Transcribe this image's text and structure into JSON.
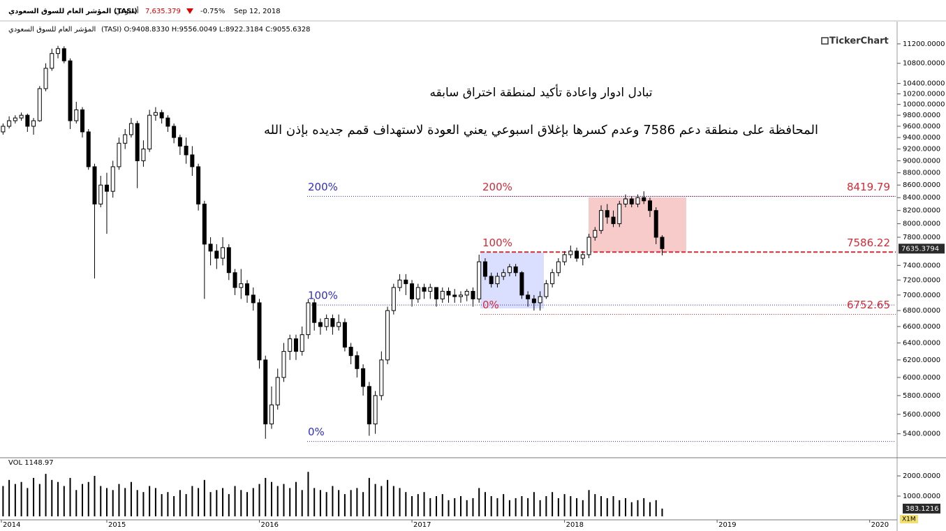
{
  "header": {
    "index_name": "المؤشر العام للسوق السعودي (TASI)",
    "period": "أسبوعي",
    "price": "7,635.379",
    "change": "-0.75%",
    "date": "Sep 12, 2018",
    "ohlc_name": "المؤشر العام للسوق السعودي",
    "ohlc": "(TASI) O:9408.8330 H:9556.0049 L:8922.3184 C:9055.6328",
    "logo": "TickerChart"
  },
  "chart_data": {
    "type": "candlestick",
    "annotations": [
      "تبادل ادوار واعادة تأكيد لمنطقة اختراق سابقه",
      "المحافظة على منطقة دعم 7586 وعدم كسرها بإغلاق اسبوعي يعني العودة لاستهداف قمم جديده بإذن الله"
    ],
    "log_scale": true,
    "up_color": "#ffffff",
    "down_color": "#000000",
    "x": [
      2014.32,
      2014.36,
      2014.4,
      2014.44,
      2014.48,
      2014.52,
      2014.56,
      2014.6,
      2014.64,
      2014.68,
      2014.72,
      2014.76,
      2014.8,
      2014.84,
      2014.88,
      2014.92,
      2014.96,
      2015.0,
      2015.04,
      2015.08,
      2015.12,
      2015.16,
      2015.2,
      2015.24,
      2015.28,
      2015.32,
      2015.36,
      2015.4,
      2015.44,
      2015.48,
      2015.52,
      2015.56,
      2015.6,
      2015.64,
      2015.68,
      2015.72,
      2015.76,
      2015.8,
      2015.84,
      2015.88,
      2015.92,
      2015.96,
      2016.0,
      2016.04,
      2016.08,
      2016.12,
      2016.16,
      2016.2,
      2016.24,
      2016.28,
      2016.32,
      2016.36,
      2016.4,
      2016.44,
      2016.48,
      2016.52,
      2016.56,
      2016.6,
      2016.64,
      2016.68,
      2016.72,
      2016.76,
      2016.8,
      2016.84,
      2016.88,
      2016.92,
      2016.96,
      2017.0,
      2017.04,
      2017.08,
      2017.12,
      2017.16,
      2017.2,
      2017.24,
      2017.28,
      2017.32,
      2017.36,
      2017.4,
      2017.44,
      2017.48,
      2017.52,
      2017.56,
      2017.6,
      2017.64,
      2017.68,
      2017.72,
      2017.76,
      2017.8,
      2017.84,
      2017.88,
      2017.92,
      2017.96,
      2018.0,
      2018.04,
      2018.08,
      2018.12,
      2018.16,
      2018.2,
      2018.24,
      2018.28,
      2018.32,
      2018.36,
      2018.4,
      2018.44,
      2018.48,
      2018.52,
      2018.56,
      2018.6,
      2018.64
    ],
    "open": [
      9500,
      9600,
      9700,
      9750,
      9800,
      9600,
      9700,
      10300,
      10700,
      11000,
      11100,
      10850,
      9700,
      9900,
      9500,
      8900,
      8300,
      8600,
      8500,
      8900,
      9300,
      9450,
      9650,
      9000,
      9200,
      9800,
      9850,
      9750,
      9600,
      9400,
      9250,
      9100,
      8900,
      8300,
      7700,
      7600,
      7500,
      7650,
      7300,
      7100,
      7150,
      7000,
      6900,
      6200,
      5500,
      5700,
      6000,
      6300,
      6450,
      6300,
      6500,
      6900,
      6650,
      6600,
      6700,
      6600,
      6650,
      6350,
      6250,
      6100,
      5900,
      5500,
      5800,
      6200,
      6800,
      7100,
      7200,
      7150,
      6950,
      7100,
      7050,
      7100,
      6950,
      7050,
      7000,
      6980,
      7000,
      7050,
      6950,
      7450,
      7250,
      7150,
      7250,
      7300,
      7380,
      7300,
      7000,
      6950,
      6900,
      6980,
      7150,
      7300,
      7450,
      7550,
      7600,
      7500,
      7550,
      7800,
      7900,
      8200,
      8100,
      8000,
      8300,
      8380,
      8300,
      8400,
      8350,
      8200,
      7800
    ],
    "high": [
      9650,
      9780,
      9800,
      9850,
      9830,
      9750,
      10350,
      10800,
      11100,
      11160,
      11150,
      10900,
      10050,
      9950,
      9550,
      8950,
      8750,
      8800,
      9000,
      9400,
      9550,
      9750,
      9700,
      9350,
      9900,
      9950,
      9900,
      9800,
      9650,
      9450,
      9400,
      9250,
      8950,
      8350,
      7800,
      7700,
      7800,
      7700,
      7350,
      7350,
      7200,
      7100,
      6950,
      6250,
      5900,
      6100,
      6400,
      6500,
      6500,
      6600,
      6950,
      6950,
      6700,
      6750,
      6750,
      6750,
      6700,
      6400,
      6300,
      6150,
      5950,
      5850,
      6300,
      6850,
      7150,
      7280,
      7280,
      7200,
      7150,
      7150,
      7150,
      7100,
      7100,
      7100,
      7080,
      7050,
      7080,
      7100,
      7550,
      7500,
      7300,
      7300,
      7350,
      7420,
      7420,
      7320,
      7050,
      7000,
      7050,
      7200,
      7350,
      7500,
      7600,
      7680,
      7650,
      7600,
      7850,
      7950,
      8280,
      8300,
      8200,
      8350,
      8450,
      8420,
      8450,
      8500,
      8400,
      8250,
      7830
    ],
    "low": [
      9450,
      9560,
      9650,
      9700,
      9500,
      9450,
      9680,
      10250,
      10650,
      10900,
      10800,
      9550,
      9650,
      9400,
      8850,
      7220,
      8250,
      7850,
      8400,
      8850,
      9200,
      9400,
      8550,
      8900,
      9150,
      9700,
      9650,
      9500,
      9300,
      9100,
      8950,
      8750,
      8200,
      6950,
      7400,
      7350,
      7400,
      7200,
      7000,
      6950,
      6900,
      6800,
      6100,
      5350,
      5450,
      5650,
      5950,
      6200,
      6200,
      6250,
      6450,
      6550,
      6500,
      6550,
      6500,
      6550,
      6300,
      6150,
      6000,
      5800,
      5380,
      5400,
      5750,
      6150,
      6750,
      7050,
      7000,
      6850,
      6900,
      6950,
      6950,
      6850,
      6900,
      6900,
      6900,
      6900,
      6920,
      6850,
      6900,
      7200,
      7100,
      7100,
      7200,
      7250,
      7250,
      6950,
      6850,
      6800,
      6800,
      6950,
      7100,
      7250,
      7400,
      7500,
      7450,
      7400,
      7500,
      7750,
      7850,
      8000,
      7950,
      7950,
      8250,
      8250,
      8250,
      8300,
      8100,
      7700,
      7540
    ],
    "close": [
      9600,
      9700,
      9750,
      9800,
      9600,
      9700,
      10300,
      10700,
      11000,
      11100,
      10850,
      9700,
      9900,
      9500,
      8900,
      8300,
      8600,
      8500,
      8900,
      9300,
      9450,
      9650,
      9000,
      9200,
      9800,
      9850,
      9750,
      9600,
      9400,
      9250,
      9100,
      8900,
      8300,
      7700,
      7600,
      7500,
      7650,
      7300,
      7100,
      7150,
      7000,
      6900,
      6200,
      5500,
      5700,
      6000,
      6300,
      6450,
      6300,
      6500,
      6900,
      6650,
      6600,
      6700,
      6600,
      6650,
      6350,
      6250,
      6100,
      5900,
      5500,
      5800,
      6200,
      6800,
      7100,
      7200,
      7150,
      6950,
      7100,
      7050,
      7100,
      6950,
      7050,
      7000,
      6980,
      7000,
      7050,
      6950,
      7450,
      7250,
      7150,
      7250,
      7300,
      7380,
      7300,
      7000,
      6950,
      6900,
      6980,
      7150,
      7300,
      7450,
      7550,
      7600,
      7500,
      7550,
      7800,
      7900,
      8200,
      8100,
      8000,
      8300,
      8380,
      8300,
      8400,
      8350,
      8200,
      7800,
      7635.3794
    ],
    "ylim": [
      5170,
      11390
    ],
    "yticks": [
      {
        "value": 11200,
        "label": "11200.0000"
      },
      {
        "value": 10800,
        "label": "10800.0000"
      },
      {
        "value": 10400,
        "label": "10400.0000"
      },
      {
        "value": 10200,
        "label": "10200.0000"
      },
      {
        "value": 10000,
        "label": "10000.0000"
      },
      {
        "value": 9800,
        "label": "9800.0000"
      },
      {
        "value": 9600,
        "label": "9600.0000"
      },
      {
        "value": 9400,
        "label": "9400.0000"
      },
      {
        "value": 9200,
        "label": "9200.0000"
      },
      {
        "value": 9000,
        "label": "9000.0000"
      },
      {
        "value": 8800,
        "label": "8800.0000"
      },
      {
        "value": 8600,
        "label": "8600.0000"
      },
      {
        "value": 8400,
        "label": "8400.0000"
      },
      {
        "value": 8200,
        "label": "8200.0000"
      },
      {
        "value": 8000,
        "label": "8000.0000"
      },
      {
        "value": 7800,
        "label": "7800.0000"
      },
      {
        "value": 7400,
        "label": "7400.0000"
      },
      {
        "value": 7200,
        "label": "7200.0000"
      },
      {
        "value": 7000,
        "label": "7000.0000"
      },
      {
        "value": 6800,
        "label": "6800.0000"
      },
      {
        "value": 6600,
        "label": "6600.0000"
      },
      {
        "value": 6400,
        "label": "6400.0000"
      },
      {
        "value": 6200,
        "label": "6200.0000"
      },
      {
        "value": 6000,
        "label": "6000.0000"
      },
      {
        "value": 5800,
        "label": "5800.0000"
      },
      {
        "value": 5600,
        "label": "5600.0000"
      },
      {
        "value": 5400,
        "label": "5400.0000"
      }
    ],
    "xlim": [
      2014.3,
      2020.18
    ],
    "xticks": [
      {
        "value": 2014.3,
        "label": "2014"
      },
      2015,
      2016,
      2017,
      2018,
      2019,
      2020
    ],
    "fib_blue": {
      "color": "#2f2fc8",
      "levels": [
        {
          "label": "200%",
          "value": 8419.79
        },
        {
          "label": "100%",
          "value": 6871
        },
        {
          "label": "0%",
          "value": 5323
        }
      ]
    },
    "fib_red": {
      "color": "#d42a35",
      "levels": [
        {
          "label": "200%",
          "value": 8419.79
        },
        {
          "label": "100%",
          "value": 7586.22
        },
        {
          "label": "0%",
          "value": 6752.65
        }
      ]
    },
    "volume_label": "VOL 1148.97",
    "volume": [
      1500,
      1800,
      1600,
      1700,
      1400,
      1900,
      1600,
      2100,
      1800,
      1700,
      1500,
      1900,
      1300,
      1600,
      1700,
      2000,
      1500,
      1400,
      1300,
      1600,
      1400,
      1700,
      1300,
      1200,
      1500,
      1400,
      1100,
      1200,
      1000,
      1300,
      1100,
      1500,
      1400,
      1800,
      1200,
      1300,
      1400,
      1100,
      1500,
      1300,
      1200,
      1400,
      1600,
      1900,
      1700,
      1500,
      1600,
      1400,
      1700,
      1300,
      2200,
      1400,
      1300,
      1200,
      1500,
      1300,
      1100,
      1300,
      1400,
      1200,
      1900,
      1600,
      1500,
      1800,
      1500,
      1400,
      1200,
      1000,
      1100,
      1200,
      900,
      1000,
      1100,
      800,
      900,
      1000,
      800,
      900,
      1400,
      1200,
      1000,
      900,
      1100,
      800,
      900,
      1000,
      900,
      1200,
      800,
      1000,
      1200,
      900,
      1100,
      1000,
      900,
      800,
      1300,
      1100,
      1000,
      900,
      1000,
      800,
      900,
      700,
      800,
      900,
      700,
      800,
      383.1216
    ],
    "volume_ylim": [
      0,
      2760
    ],
    "volume_yticks": [
      {
        "value": 1000,
        "label": "1000.0000"
      },
      {
        "value": 2000,
        "label": "2000.0000"
      }
    ],
    "volume_unit": "X1M"
  }
}
